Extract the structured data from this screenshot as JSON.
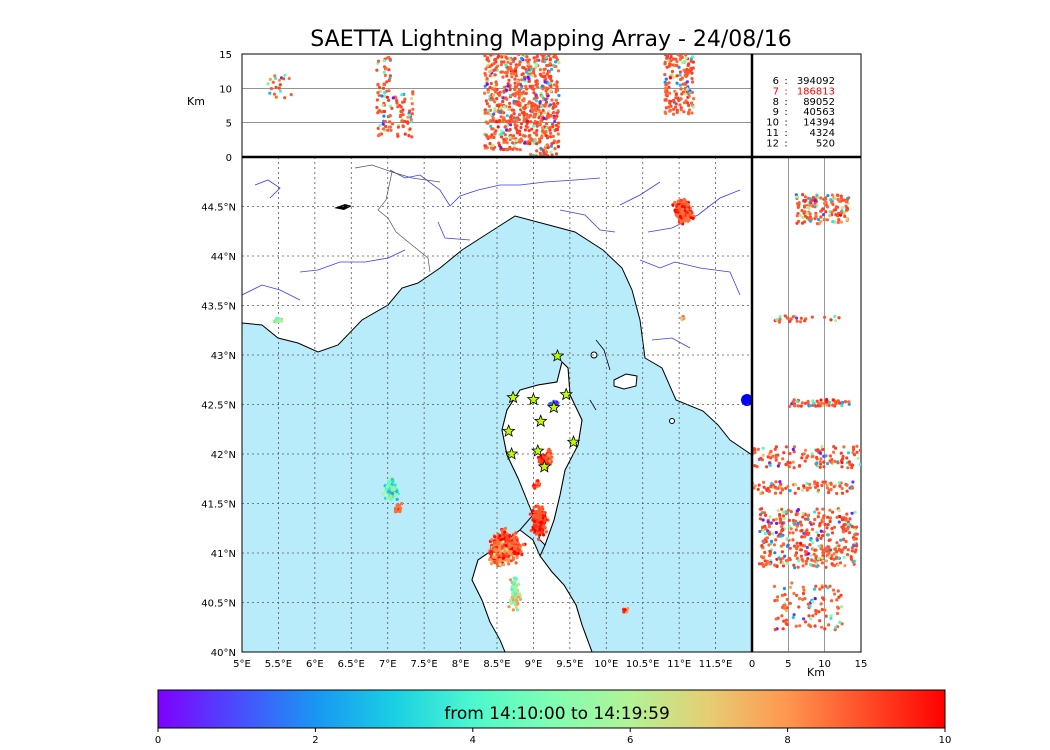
{
  "chart_data": {
    "type": "scatter",
    "title": "SAETTA Lightning Mapping Array - 24/08/16",
    "map": {
      "lon_range": [
        5,
        12
      ],
      "lat_range": [
        40,
        45
      ],
      "lon_ticks": [
        "5°E",
        "5.5°E",
        "6°E",
        "6.5°E",
        "7°E",
        "7.5°E",
        "8°E",
        "8.5°E",
        "9°E",
        "9.5°E",
        "10°E",
        "10.5°E",
        "11°E",
        "11.5°E"
      ],
      "lat_ticks": [
        "40°N",
        "40.5°N",
        "41°N",
        "41.5°N",
        "42°N",
        "42.5°N",
        "43°N",
        "43.5°N",
        "44°N",
        "44.5°N"
      ],
      "grid": true,
      "sea_color": "#b8ecfb",
      "land_color": "#ffffff",
      "stations": [
        [
          8.72,
          42.57
        ],
        [
          9.0,
          42.55
        ],
        [
          9.28,
          42.47
        ],
        [
          9.33,
          42.99
        ],
        [
          9.45,
          42.6
        ],
        [
          9.1,
          42.33
        ],
        [
          8.66,
          42.23
        ],
        [
          9.06,
          42.03
        ],
        [
          8.7,
          42.0
        ],
        [
          9.55,
          42.12
        ],
        [
          9.15,
          41.87
        ]
      ]
    },
    "altitude_axis": {
      "label": "Km",
      "range": [
        0,
        15
      ],
      "ticks": [
        "0",
        "5",
        "10",
        "15"
      ],
      "x_label": "Km",
      "x_ticks": [
        "0",
        "5",
        "10",
        "15"
      ]
    },
    "stats": [
      {
        "stations": "6",
        "count": "394092",
        "highlight": false
      },
      {
        "stations": "7",
        "count": "186813",
        "highlight": true
      },
      {
        "stations": "8",
        "count": "89052",
        "highlight": false
      },
      {
        "stations": "9",
        "count": "40563",
        "highlight": false
      },
      {
        "stations": "10",
        "count": "14394",
        "highlight": false
      },
      {
        "stations": "11",
        "count": "4324",
        "highlight": false
      },
      {
        "stations": "12",
        "count": "520",
        "highlight": false
      }
    ],
    "colorbar": {
      "caption": "from 14:10:00 to 14:19:59",
      "range": [
        0,
        10
      ],
      "ticks": [
        "0",
        "2",
        "4",
        "6",
        "8",
        "10"
      ],
      "colors": [
        "#7f00ff",
        "#4a4cfe",
        "#1996f3",
        "#1acfe3",
        "#4df8ce",
        "#80feb3",
        "#b2f396",
        "#e6cd73",
        "#ff964f",
        "#ff4c27",
        "#ff0000"
      ],
      "station_color": "#bdff00",
      "highlight_color": "#ff0000"
    },
    "clusters": [
      {
        "lon": 8.62,
        "lat": 41.07,
        "alt": 8,
        "slon": 0.18,
        "slat": 0.13,
        "n": 420,
        "c": 0.85
      },
      {
        "lon": 8.55,
        "lat": 40.98,
        "alt": 5,
        "slon": 0.14,
        "slat": 0.1,
        "n": 160,
        "c": 0.8
      },
      {
        "lon": 9.08,
        "lat": 41.32,
        "alt": 6,
        "slon": 0.09,
        "slat": 0.13,
        "n": 260,
        "c": 0.88
      },
      {
        "lon": 8.75,
        "lat": 40.6,
        "alt": 5,
        "slon": 0.06,
        "slat": 0.15,
        "n": 90,
        "c": 0.6
      },
      {
        "lon": 9.15,
        "lat": 41.93,
        "alt": 9,
        "slon": 0.07,
        "slat": 0.06,
        "n": 90,
        "c": 0.9
      },
      {
        "lon": 9.05,
        "lat": 41.7,
        "alt": 6,
        "slon": 0.04,
        "slat": 0.04,
        "n": 25,
        "c": 0.85
      },
      {
        "lon": 9.22,
        "lat": 41.98,
        "alt": 8,
        "slon": 0.04,
        "slat": 0.06,
        "n": 25,
        "c": 0.8
      },
      {
        "lon": 9.28,
        "lat": 42.5,
        "alt": 13,
        "slon": 0.05,
        "slat": 0.03,
        "n": 50,
        "c": 0.05
      },
      {
        "lon": 7.05,
        "lat": 41.65,
        "alt": 7,
        "slon": 0.08,
        "slat": 0.09,
        "n": 110,
        "c": 0.45
      },
      {
        "lon": 7.15,
        "lat": 41.45,
        "alt": 7,
        "slon": 0.04,
        "slat": 0.04,
        "n": 40,
        "c": 0.85
      },
      {
        "lon": 11.05,
        "lat": 44.45,
        "alt": 10,
        "slon": 0.11,
        "slat": 0.1,
        "n": 260,
        "c": 0.85
      },
      {
        "lon": 5.5,
        "lat": 43.35,
        "alt": 10,
        "slon": 0.05,
        "slat": 0.02,
        "n": 18,
        "c": 0.6
      },
      {
        "lon": 11.05,
        "lat": 43.37,
        "alt": 9,
        "slon": 0.02,
        "slat": 0.02,
        "n": 8,
        "c": 0.7
      },
      {
        "lon": 10.25,
        "lat": 40.42,
        "alt": 6,
        "slon": 0.05,
        "slat": 0.03,
        "n": 12,
        "c": 0.8
      }
    ],
    "alt_profile": [
      {
        "x0": 5.35,
        "x1": 5.7,
        "a0": 8.5,
        "a1": 12,
        "n": 20
      },
      {
        "x0": 6.85,
        "x1": 7.05,
        "a0": 3,
        "a1": 14.5,
        "n": 70
      },
      {
        "x0": 7.05,
        "x1": 7.35,
        "a0": 2.5,
        "a1": 9.5,
        "n": 50
      },
      {
        "x0": 8.33,
        "x1": 8.95,
        "a0": 1,
        "a1": 15,
        "n": 420
      },
      {
        "x0": 8.95,
        "x1": 9.35,
        "a0": 0,
        "a1": 15,
        "n": 300
      },
      {
        "x0": 10.8,
        "x1": 11.2,
        "a0": 6,
        "a1": 15,
        "n": 160
      }
    ],
    "lat_profile": [
      {
        "a0": 6,
        "a1": 13.5,
        "y0": 44.32,
        "y1": 44.62,
        "n": 150
      },
      {
        "a0": 3,
        "a1": 12,
        "y0": 43.33,
        "y1": 43.4,
        "n": 25
      },
      {
        "a0": 5,
        "a1": 13.5,
        "y0": 42.48,
        "y1": 42.55,
        "n": 60
      },
      {
        "a0": 0,
        "a1": 15,
        "y0": 41.86,
        "y1": 42.08,
        "n": 120
      },
      {
        "a0": 0,
        "a1": 15,
        "y0": 41.6,
        "y1": 41.72,
        "n": 80
      },
      {
        "a0": 1,
        "a1": 14.5,
        "y0": 40.85,
        "y1": 41.45,
        "n": 380
      },
      {
        "a0": 3,
        "a1": 12.5,
        "y0": 40.2,
        "y1": 40.7,
        "n": 100
      }
    ]
  }
}
